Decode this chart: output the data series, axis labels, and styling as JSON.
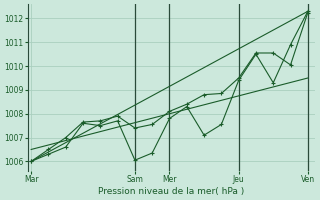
{
  "background_color": "#cce8dc",
  "grid_color": "#aacfbf",
  "line_color": "#1a5c2a",
  "vline_color": "#2a4a3a",
  "xlabel": "Pression niveau de la mer( hPa )",
  "ylim": [
    1005.6,
    1012.6
  ],
  "yticks": [
    1006,
    1007,
    1008,
    1009,
    1010,
    1011,
    1012
  ],
  "day_labels": [
    "Mar",
    "Sam",
    "Mer",
    "Jeu",
    "Ven"
  ],
  "day_positions": [
    0,
    3.0,
    4.0,
    6.0,
    8.0
  ],
  "xlim": [
    -0.1,
    8.2
  ],
  "series1_marked": {
    "x": [
      0,
      0.5,
      1.0,
      1.5,
      2.0,
      2.5,
      3.0,
      3.5,
      4.0,
      4.5,
      5.0,
      5.5,
      6.0,
      6.5,
      7.0,
      7.5,
      8.0
    ],
    "y": [
      1006.0,
      1006.3,
      1006.6,
      1007.6,
      1007.5,
      1007.7,
      1006.05,
      1006.35,
      1007.8,
      1008.3,
      1007.1,
      1007.55,
      1009.4,
      1010.5,
      1009.3,
      1010.9,
      1012.3
    ]
  },
  "series2_marked": {
    "x": [
      0,
      0.5,
      1.0,
      1.5,
      2.0,
      2.5,
      3.0,
      3.5,
      4.0,
      4.5,
      5.0,
      5.5,
      6.0,
      6.5,
      7.0,
      7.5,
      8.0
    ],
    "y": [
      1006.0,
      1006.5,
      1007.0,
      1007.65,
      1007.7,
      1007.9,
      1007.4,
      1007.55,
      1008.1,
      1008.4,
      1008.8,
      1008.85,
      1009.5,
      1010.55,
      1010.55,
      1010.05,
      1012.25
    ]
  },
  "trend1": {
    "x": [
      0,
      8.0
    ],
    "y": [
      1006.0,
      1012.3
    ]
  },
  "trend2": {
    "x": [
      0,
      8.0
    ],
    "y": [
      1006.5,
      1009.5
    ]
  },
  "vlines_x": [
    3.0,
    4.0,
    6.0,
    8.0
  ]
}
